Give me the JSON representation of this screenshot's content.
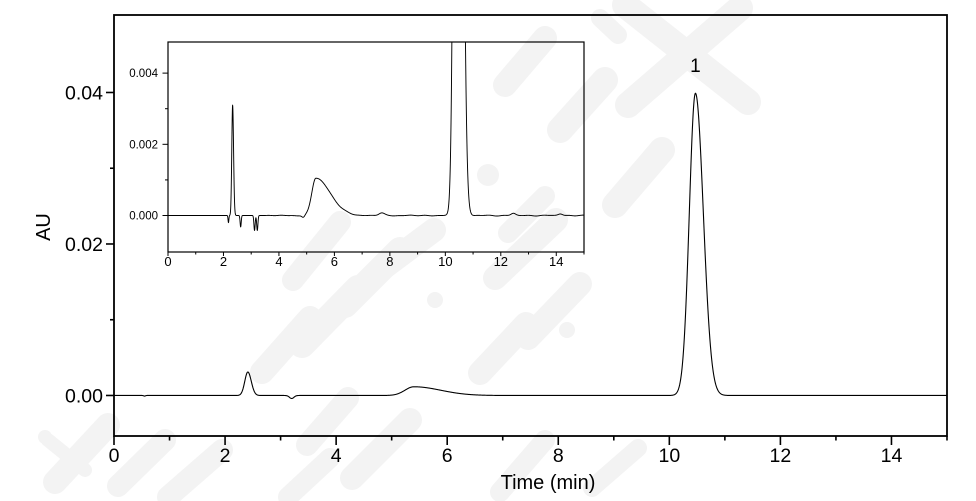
{
  "figure": {
    "background": "#ffffff",
    "line_color": "#000000",
    "watermark_color": "#f3f3f3"
  },
  "chart_data": [
    {
      "id": "main",
      "type": "line",
      "title": "",
      "xlabel": "Time (min)",
      "ylabel": "AU",
      "xlim": [
        0,
        15
      ],
      "ylim": [
        -0.00535,
        0.05023
      ],
      "x_major_ticks": [
        0,
        2,
        4,
        6,
        8,
        10,
        12,
        14
      ],
      "x_tick_labels": [
        "0",
        "2",
        "4",
        "6",
        "8",
        "10",
        "12",
        "14"
      ],
      "x_minor_ticks": [
        1,
        3,
        5,
        7,
        9,
        11,
        13,
        15
      ],
      "y_major_ticks": [
        0.0,
        0.02,
        0.04
      ],
      "y_tick_labels": [
        "0.00",
        "0.02",
        "0.04"
      ],
      "y_minor_ticks": [
        0.01,
        0.03
      ],
      "grid": false,
      "legend": false,
      "noise_amp": 0,
      "peaks": [
        {
          "center": 0.55,
          "height": -8e-05,
          "sigma_left": 0.015,
          "sigma_right": 0.015
        },
        {
          "center": 2.41,
          "height": 0.0031,
          "sigma_left": 0.055,
          "sigma_right": 0.062
        },
        {
          "center": 3.2,
          "height": -0.0004,
          "sigma_left": 0.04,
          "sigma_right": 0.04
        },
        {
          "center": 5.4,
          "height": 0.00115,
          "sigma_left": 0.16,
          "sigma_right": 0.48
        },
        {
          "center": 10.47,
          "height": 0.0399,
          "sigma_left": 0.11,
          "sigma_right": 0.142
        }
      ],
      "annotations": [
        {
          "label": "1",
          "x": 10.47,
          "y": 0.0427
        }
      ]
    },
    {
      "id": "inset",
      "type": "line",
      "title": "",
      "xlabel": "",
      "ylabel": "",
      "xlim": [
        0,
        15
      ],
      "ylim": [
        -0.001025,
        0.004874
      ],
      "x_major_ticks": [
        0,
        2,
        4,
        6,
        8,
        10,
        12,
        14
      ],
      "x_tick_labels": [
        "0",
        "2",
        "4",
        "6",
        "8",
        "10",
        "12",
        "14"
      ],
      "x_minor_ticks": [
        1,
        3,
        5,
        7,
        9,
        11,
        13,
        15
      ],
      "y_major_ticks": [
        0.0,
        0.002,
        0.004
      ],
      "y_tick_labels": [
        "0.000",
        "0.002",
        "0.004"
      ],
      "y_minor_ticks": [
        0.001,
        0.003
      ],
      "grid": false,
      "legend": false,
      "noise_amp": 5e-06,
      "peaks": [
        {
          "center": 2.18,
          "height": -0.0002,
          "sigma_left": 0.015,
          "sigma_right": 0.015
        },
        {
          "center": 2.33,
          "height": 0.0031,
          "sigma_left": 0.03,
          "sigma_right": 0.034
        },
        {
          "center": 2.62,
          "height": -0.00032,
          "sigma_left": 0.02,
          "sigma_right": 0.02
        },
        {
          "center": 3.12,
          "height": -0.00042,
          "sigma_left": 0.022,
          "sigma_right": 0.022
        },
        {
          "center": 3.22,
          "height": -0.00042,
          "sigma_left": 0.022,
          "sigma_right": 0.022
        },
        {
          "center": 4.88,
          "height": -6e-05,
          "sigma_left": 0.05,
          "sigma_right": 0.05
        },
        {
          "center": 5.33,
          "height": 0.00105,
          "sigma_left": 0.145,
          "sigma_right": 0.52
        },
        {
          "center": 7.7,
          "height": 7e-05,
          "sigma_left": 0.1,
          "sigma_right": 0.1
        },
        {
          "center": 10.45,
          "height": 0.0394,
          "sigma_left": 0.105,
          "sigma_right": 0.135
        },
        {
          "center": 12.45,
          "height": 6e-05,
          "sigma_left": 0.08,
          "sigma_right": 0.08
        },
        {
          "center": 14.15,
          "height": 5e-05,
          "sigma_left": 0.08,
          "sigma_right": 0.08
        }
      ],
      "annotations": []
    }
  ]
}
